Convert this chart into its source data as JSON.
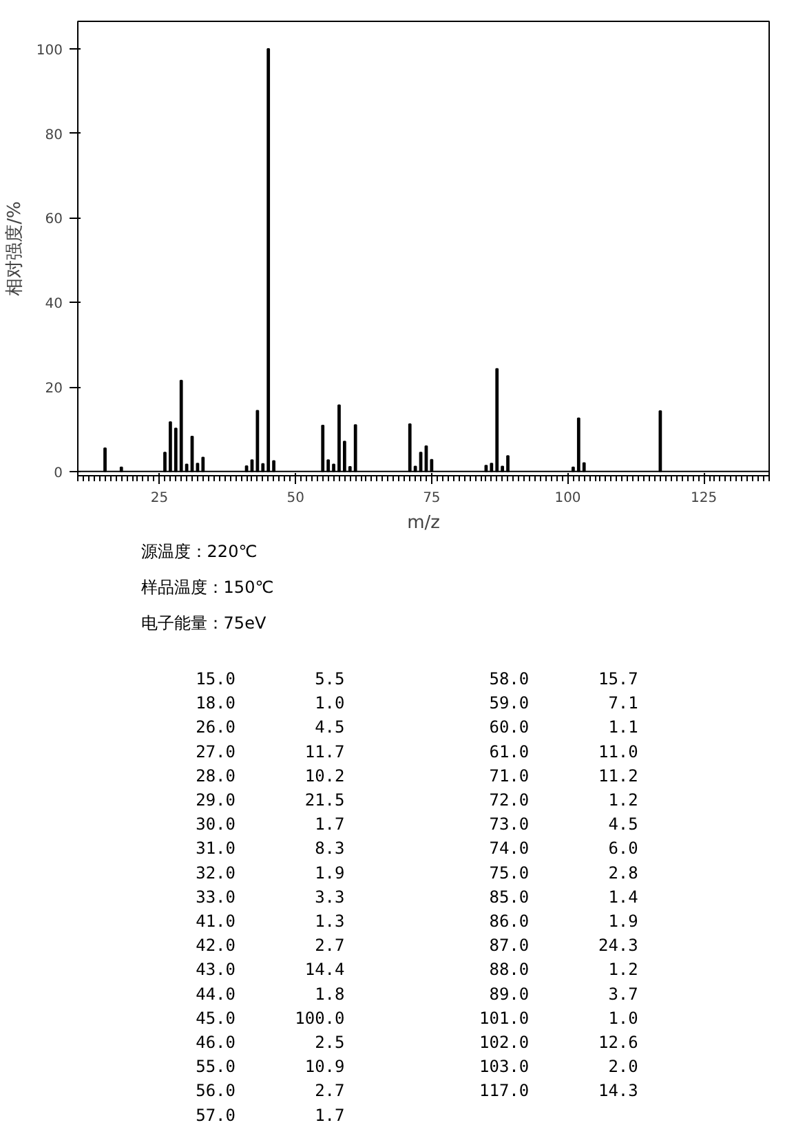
{
  "chart_data": {
    "type": "bar",
    "xlabel": "m/z",
    "ylabel": "相对强度/%",
    "x": [
      15,
      18,
      26,
      27,
      28,
      29,
      30,
      31,
      32,
      33,
      41,
      42,
      43,
      44,
      45,
      46,
      55,
      56,
      57,
      58,
      59,
      60,
      61,
      71,
      72,
      73,
      74,
      75,
      85,
      86,
      87,
      88,
      89,
      101,
      102,
      103,
      117
    ],
    "values": [
      5.5,
      1.0,
      4.5,
      11.7,
      10.2,
      21.5,
      1.7,
      8.3,
      1.9,
      3.3,
      1.3,
      2.7,
      14.4,
      1.8,
      100.0,
      2.5,
      10.9,
      2.7,
      1.7,
      15.7,
      7.1,
      1.1,
      11.0,
      11.2,
      1.2,
      4.5,
      6.0,
      2.8,
      1.4,
      1.9,
      24.3,
      1.2,
      3.7,
      1.0,
      12.6,
      2.0,
      14.3
    ],
    "color": "#000000",
    "xlim": [
      10,
      137
    ],
    "xticks": [
      25,
      50,
      75,
      100,
      125
    ],
    "ylim": [
      -1,
      106.5
    ],
    "yticks": [
      0,
      20,
      40,
      60,
      80,
      100
    ],
    "grid": false,
    "annotations": [
      "源温度：220℃",
      "样品温度：150℃",
      "电子能量：75eV",
      "15.0",
      "5.5",
      "18.0",
      "1.0",
      "26.0",
      "4.5",
      "27.0",
      "11.7",
      "28.0",
      "10.2",
      "29.0",
      "21.5",
      "30.0",
      "1.7",
      "31.0",
      "8.3",
      "32.0",
      "1.9",
      "33.0",
      "3.3",
      "41.0",
      "1.3",
      "42.0",
      "2.7",
      "43.0",
      "14.4",
      "44.0",
      "1.8",
      "45.0",
      "100.0",
      "46.0",
      "2.5",
      "55.0",
      "10.9",
      "56.0",
      "2.7",
      "57.0",
      "1.7",
      "58.0",
      "15.7",
      "59.0",
      "7.1",
      "60.0",
      "1.1",
      "61.0",
      "11.0",
      "71.0",
      "11.2",
      "72.0",
      "1.2",
      "73.0",
      "4.5",
      "74.0",
      "6.0",
      "75.0",
      "2.8",
      "85.0",
      "1.4",
      "86.0",
      "1.9",
      "87.0",
      "24.3",
      "88.0",
      "1.2",
      "89.0",
      "3.7",
      "101.0",
      "1.0",
      "102.0",
      "12.6",
      "103.0",
      "2.0",
      "117.0",
      "14.3"
    ]
  }
}
